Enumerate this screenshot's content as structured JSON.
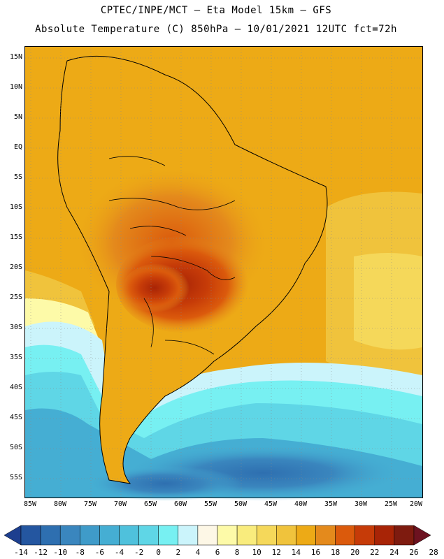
{
  "header": {
    "line1": "CPTEC/INPE/MCT –  Eta Model 15km – GFS",
    "line2": "Absolute Temperature (C) 850hPa – 10/01/2021 12UTC fct=72h"
  },
  "map": {
    "lat_labels": [
      "15N",
      "10N",
      "5N",
      "EQ",
      "5S",
      "10S",
      "15S",
      "20S",
      "25S",
      "30S",
      "35S",
      "40S",
      "45S",
      "50S",
      "55S"
    ],
    "lon_labels": [
      "85W",
      "80W",
      "75W",
      "70W",
      "65W",
      "60W",
      "55W",
      "50W",
      "45W",
      "40W",
      "35W",
      "30W",
      "25W",
      "20W"
    ]
  },
  "colorbar": {
    "labels": [
      "-14",
      "-12",
      "-10",
      "-8",
      "-6",
      "-4",
      "-2",
      "0",
      "2",
      "4",
      "6",
      "8",
      "10",
      "12",
      "14",
      "16",
      "18",
      "20",
      "22",
      "24",
      "26",
      "28"
    ],
    "colors": [
      "#1d3f8f",
      "#2456a0",
      "#2e6fb0",
      "#3a86be",
      "#3f9bc9",
      "#45aed3",
      "#4fc1dc",
      "#5fd6e6",
      "#77f0f2",
      "#cbf4fb",
      "#fdf7e6",
      "#fdfaa8",
      "#f9ec7d",
      "#f5d85a",
      "#f0c33c",
      "#edaa16",
      "#e48a1c",
      "#db5a0c",
      "#c63b08",
      "#a82406",
      "#7e1b0f",
      "#6d1220"
    ]
  }
}
